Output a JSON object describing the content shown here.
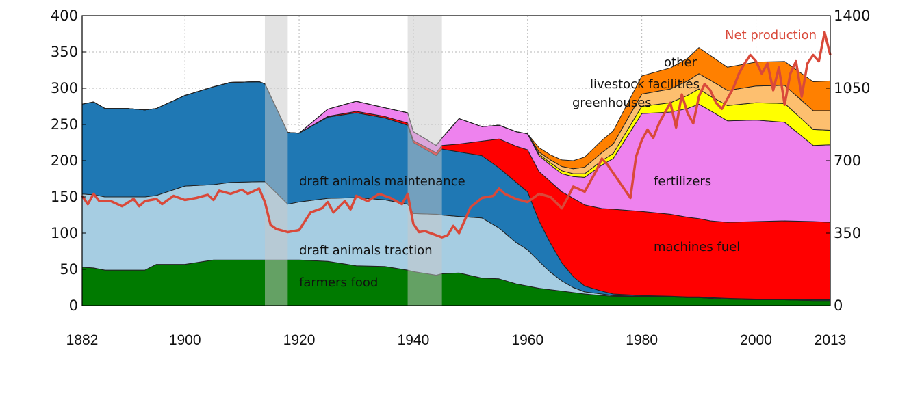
{
  "chart_data": {
    "type": "area",
    "title": "",
    "x_ticks": [
      1882,
      1900,
      1920,
      1940,
      1960,
      1980,
      2000,
      2013
    ],
    "xlim": [
      1882,
      2013
    ],
    "left_axis": {
      "ylim": [
        0,
        400
      ],
      "ticks": [
        "0",
        "50",
        "100",
        "150",
        "200",
        "250",
        "300",
        "350",
        "400"
      ]
    },
    "right_axis": {
      "ylim": [
        0,
        1400
      ],
      "ticks": [
        "0",
        "350",
        "700",
        "1050",
        "1400"
      ]
    },
    "grid": true,
    "shaded_periods": [
      [
        1914,
        1918
      ],
      [
        1939,
        1945
      ]
    ],
    "x": [
      1882,
      1884,
      1886,
      1890,
      1893,
      1895,
      1900,
      1905,
      1908,
      1913,
      1914,
      1918,
      1920,
      1925,
      1930,
      1935,
      1939,
      1940,
      1944,
      1945,
      1948,
      1952,
      1955,
      1958,
      1960,
      1962,
      1964,
      1966,
      1968,
      1970,
      1973,
      1975,
      1980,
      1985,
      1988,
      1990,
      1992,
      1995,
      2000,
      2005,
      2010,
      2013
    ],
    "series": [
      {
        "name": "farmers food",
        "color": "#007a00",
        "values": [
          53,
          52,
          49,
          49,
          49,
          57,
          57,
          63,
          63,
          63,
          63,
          63,
          63,
          61,
          55,
          54,
          49,
          47,
          42,
          44,
          45,
          38,
          37,
          30,
          27,
          24,
          22,
          20,
          18,
          16,
          14,
          13,
          12,
          12,
          11,
          11,
          10,
          9,
          8,
          8,
          7,
          7
        ]
      },
      {
        "name": "draft animals traction",
        "color": "#a6cde2",
        "values": [
          101,
          101,
          101,
          101,
          101,
          95,
          108,
          104,
          107,
          108,
          108,
          77,
          80,
          87,
          94,
          92,
          91,
          80,
          84,
          81,
          78,
          83,
          70,
          57,
          50,
          37,
          24,
          14,
          7,
          3,
          2,
          1,
          1,
          0,
          0,
          0,
          0,
          0,
          0,
          0,
          0,
          0
        ]
      },
      {
        "name": "draft animals maintenance",
        "color": "#1f78b4",
        "values": [
          124,
          128,
          122,
          122,
          120,
          120,
          125,
          135,
          138,
          138,
          135,
          99,
          95,
          112,
          117,
          113,
          109,
          98,
          81,
          91,
          89,
          86,
          83,
          83,
          80,
          56,
          40,
          25,
          15,
          8,
          4,
          2,
          1,
          1,
          1,
          1,
          1,
          1,
          1,
          1,
          1,
          1
        ]
      },
      {
        "name": "machines fuel",
        "color": "#ff0000",
        "values": [
          0,
          0,
          0,
          0,
          0,
          0,
          0,
          0,
          0,
          0,
          0,
          0,
          0,
          1,
          2,
          2,
          3,
          3,
          4,
          5,
          11,
          20,
          40,
          50,
          58,
          68,
          85,
          98,
          108,
          112,
          114,
          117,
          116,
          113,
          110,
          108,
          106,
          105,
          107,
          108,
          108,
          107
        ]
      },
      {
        "name": "fertilizers",
        "color": "#ee82ee",
        "values": [
          0,
          0,
          0,
          0,
          0,
          0,
          0,
          0,
          0,
          0,
          0,
          0,
          0,
          10,
          14,
          12,
          14,
          12,
          10,
          10,
          35,
          20,
          19,
          20,
          22,
          22,
          23,
          25,
          30,
          38,
          60,
          70,
          135,
          141,
          150,
          158,
          152,
          140,
          140,
          136,
          105,
          107
        ]
      },
      {
        "name": "greenhouses",
        "color": "#ffff00",
        "values": [
          0,
          0,
          0,
          0,
          0,
          0,
          0,
          0,
          0,
          0,
          0,
          0,
          0,
          0,
          0,
          0,
          0,
          0,
          0,
          0,
          0,
          0,
          0,
          0,
          0,
          2,
          3,
          4,
          4,
          5,
          6,
          7,
          10,
          13,
          18,
          21,
          20,
          21,
          24,
          26,
          22,
          20
        ]
      },
      {
        "name": "livestock facilities",
        "color": "#fdbf6f",
        "values": [
          0,
          0,
          0,
          0,
          0,
          0,
          0,
          0,
          0,
          0,
          0,
          0,
          0,
          0,
          0,
          0,
          0,
          0,
          0,
          0,
          0,
          0,
          0,
          0,
          0,
          3,
          4,
          6,
          7,
          9,
          11,
          13,
          17,
          19,
          20,
          21,
          22,
          21,
          23,
          25,
          26,
          27
        ]
      },
      {
        "name": "other",
        "color": "#ff8000",
        "values": [
          0,
          0,
          0,
          0,
          0,
          0,
          0,
          0,
          0,
          0,
          0,
          0,
          0,
          0,
          0,
          0,
          0,
          0,
          0,
          0,
          0,
          0,
          0,
          0,
          0,
          6,
          7,
          9,
          11,
          14,
          17,
          18,
          25,
          29,
          31,
          36,
          34,
          32,
          33,
          33,
          40,
          41
        ]
      }
    ],
    "layer_labels": [
      "farmers food",
      "draft animals traction",
      "draft animals maintenance",
      "machines fuel",
      "fertilizers",
      "greenhouses",
      "livestock facilities",
      "other"
    ],
    "net_production": {
      "label": "Net production",
      "color": "#d9493a",
      "axis": "right",
      "x": [
        1882,
        1883,
        1884,
        1885,
        1887,
        1889,
        1891,
        1892,
        1893,
        1895,
        1896,
        1898,
        1900,
        1902,
        1904,
        1905,
        1906,
        1908,
        1910,
        1911,
        1913,
        1914,
        1915,
        1916,
        1918,
        1920,
        1922,
        1924,
        1925,
        1926,
        1928,
        1929,
        1930,
        1932,
        1934,
        1936,
        1938,
        1939,
        1940,
        1941,
        1942,
        1944,
        1945,
        1946,
        1947,
        1948,
        1950,
        1952,
        1954,
        1955,
        1956,
        1958,
        1960,
        1962,
        1964,
        1966,
        1967,
        1968,
        1970,
        1972,
        1973,
        1974,
        1976,
        1978,
        1979,
        1980,
        1981,
        1982,
        1983,
        1985,
        1986,
        1987,
        1988,
        1989,
        1990,
        1991,
        1992,
        1993,
        1994,
        1996,
        1997,
        1998,
        1999,
        2000,
        2001,
        2002,
        2003,
        2004,
        2005,
        2006,
        2007,
        2008,
        2009,
        2010,
        2011,
        2012,
        2013
      ],
      "values": [
        530,
        490,
        540,
        505,
        505,
        480,
        515,
        480,
        505,
        515,
        490,
        530,
        510,
        520,
        535,
        510,
        555,
        540,
        560,
        540,
        565,
        500,
        390,
        370,
        355,
        365,
        450,
        470,
        500,
        450,
        505,
        465,
        530,
        505,
        540,
        520,
        490,
        540,
        395,
        355,
        360,
        340,
        330,
        340,
        385,
        350,
        475,
        520,
        530,
        565,
        540,
        515,
        500,
        540,
        525,
        470,
        520,
        575,
        550,
        650,
        710,
        680,
        600,
        520,
        720,
        800,
        850,
        810,
        880,
        980,
        860,
        1020,
        930,
        880,
        1010,
        1070,
        1040,
        980,
        950,
        1050,
        1120,
        1170,
        1210,
        1180,
        1120,
        1170,
        1040,
        1150,
        970,
        1120,
        1180,
        1010,
        1170,
        1210,
        1180,
        1320,
        1210
      ]
    }
  }
}
